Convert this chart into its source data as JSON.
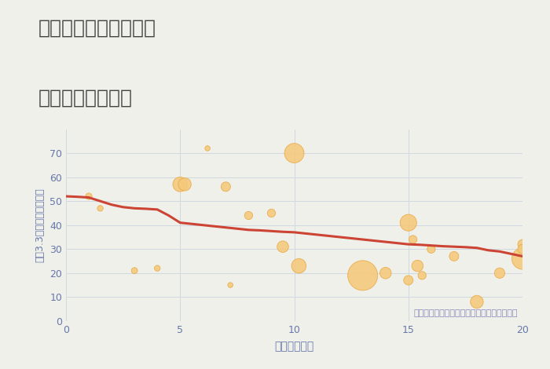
{
  "title_line1": "奈良県奈良市六条西の",
  "title_line2": "駅距離別土地価格",
  "xlabel": "駅距離（分）",
  "ylabel": "坪（3.3㎡）単価（万円）",
  "annotation": "円の大きさは、取引のあった物件面積を示す",
  "background_color": "#f0f0eb",
  "plot_bg_color": "#f0f0eb",
  "grid_color": "#d0d8e0",
  "bubble_color": "#f5c97a",
  "bubble_edge_color": "#e8a840",
  "line_color": "#cc4433",
  "title_color": "#444444",
  "axis_color": "#6677aa",
  "tick_color": "#6677aa",
  "annotation_color": "#8888bb",
  "xlim": [
    0,
    20
  ],
  "ylim": [
    0,
    80
  ],
  "xticks": [
    0,
    5,
    10,
    15,
    20
  ],
  "yticks": [
    0,
    10,
    20,
    30,
    40,
    50,
    60,
    70
  ],
  "scatter_x": [
    1.0,
    1.5,
    3.0,
    4.0,
    5.0,
    5.2,
    6.2,
    7.0,
    7.2,
    8.0,
    9.0,
    9.5,
    10.0,
    10.2,
    13.0,
    14.0,
    15.0,
    15.2,
    15.4,
    15.0,
    15.6,
    16.0,
    17.0,
    18.0,
    19.0,
    20.0,
    20.0,
    20.2,
    20.0
  ],
  "scatter_y": [
    52,
    47,
    21,
    22,
    57,
    57,
    72,
    56,
    15,
    44,
    45,
    31,
    70,
    23,
    19,
    20,
    41,
    34,
    23,
    17,
    19,
    30,
    27,
    8,
    20,
    32,
    26,
    31,
    30
  ],
  "scatter_size": [
    35,
    28,
    32,
    28,
    180,
    140,
    22,
    75,
    22,
    55,
    55,
    110,
    320,
    180,
    750,
    110,
    230,
    55,
    110,
    75,
    55,
    55,
    75,
    140,
    90,
    75,
    380,
    75,
    75
  ],
  "line_x": [
    0,
    0.5,
    1,
    1.5,
    2,
    2.5,
    3,
    3.5,
    4,
    4.5,
    5,
    5.5,
    6,
    6.5,
    7,
    7.5,
    8,
    8.5,
    9,
    9.5,
    10,
    10.5,
    11,
    11.5,
    12,
    12.5,
    13,
    13.5,
    14,
    14.5,
    15,
    15.5,
    16,
    16.5,
    17,
    17.5,
    18,
    18.5,
    19,
    19.5,
    20
  ],
  "line_y": [
    52,
    51.8,
    51.5,
    50,
    48.5,
    47.5,
    47,
    46.8,
    46.5,
    44,
    41,
    40.5,
    40,
    39.5,
    39,
    38.5,
    38,
    37.8,
    37.5,
    37.2,
    37,
    36.5,
    36,
    35.5,
    35,
    34.5,
    34,
    33.5,
    33,
    32.5,
    32,
    31.8,
    31.5,
    31.2,
    31,
    30.8,
    30.5,
    29.5,
    29,
    28,
    27
  ]
}
